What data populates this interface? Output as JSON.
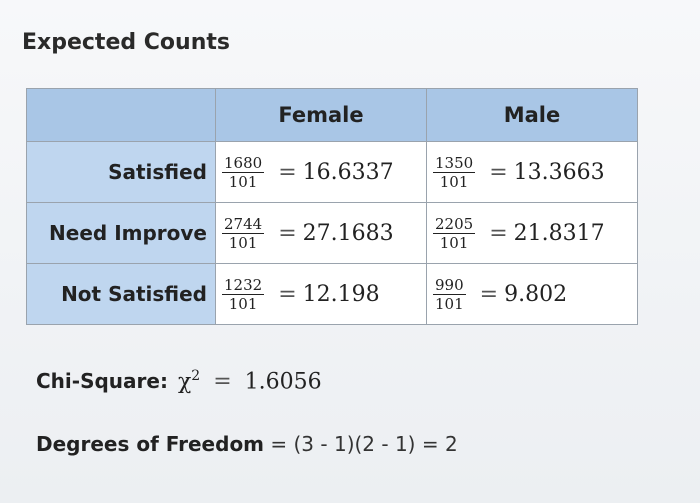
{
  "title": "Expected Counts",
  "table": {
    "columns": [
      "Female",
      "Male"
    ],
    "rows": [
      {
        "label": "Satisfied",
        "cells": [
          {
            "num": "1680",
            "den": "101",
            "value": "16.6337"
          },
          {
            "num": "1350",
            "den": "101",
            "value": "13.3663"
          }
        ]
      },
      {
        "label": "Need Improve",
        "cells": [
          {
            "num": "2744",
            "den": "101",
            "value": "27.1683"
          },
          {
            "num": "2205",
            "den": "101",
            "value": "21.8317"
          }
        ]
      },
      {
        "label": "Not Satisfied",
        "cells": [
          {
            "num": "1232",
            "den": "101",
            "value": "12.198"
          },
          {
            "num": "990",
            "den": "101",
            "value": "9.802"
          }
        ]
      }
    ]
  },
  "chi_square": {
    "label": "Chi-Square:",
    "symbol": "χ",
    "exponent": "2",
    "value": "1.6056"
  },
  "degrees_of_freedom": {
    "label": "Degrees of Freedom",
    "expression": "= (3 - 1)(2 - 1) = 2"
  }
}
